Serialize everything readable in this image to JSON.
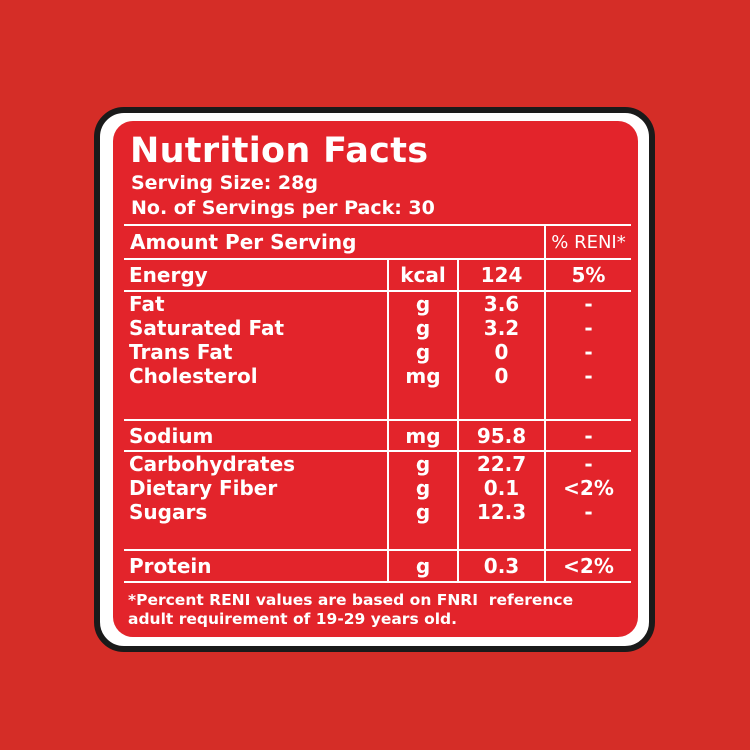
{
  "label": {
    "title": "Nutrition Facts",
    "serving_size": "Serving Size: 28g",
    "servings_per_pack": "No. of Servings per Pack: 30",
    "header_amount": "Amount Per Serving",
    "header_reni": "% RENI*",
    "energy": {
      "name": "Energy",
      "unit": "kcal",
      "value": "124",
      "reni": "5%"
    },
    "fat_group": [
      {
        "name": "Fat",
        "unit": "g",
        "value": "3.6",
        "reni": "-"
      },
      {
        "name": "Saturated Fat",
        "unit": "g",
        "value": "3.2",
        "reni": "-"
      },
      {
        "name": "Trans Fat",
        "unit": "g",
        "value": "0",
        "reni": "-"
      },
      {
        "name": "Cholesterol",
        "unit": "mg",
        "value": "0",
        "reni": "-"
      }
    ],
    "sodium": {
      "name": "Sodium",
      "unit": "mg",
      "value": "95.8",
      "reni": "-"
    },
    "carb_group": [
      {
        "name": "Carbohydrates",
        "unit": "g",
        "value": "22.7",
        "reni": "-"
      },
      {
        "name": "Dietary Fiber",
        "unit": "g",
        "value": "0.1",
        "reni": "<2%"
      },
      {
        "name": "Sugars",
        "unit": "g",
        "value": "12.3",
        "reni": "-"
      }
    ],
    "protein": {
      "name": "Protein",
      "unit": "g",
      "value": "0.3",
      "reni": "<2%"
    },
    "footnote_line1": "*Percent RENI values are based on FNRI  reference",
    "footnote_line2": "adult requirement of 19-29 years old."
  },
  "colors": {
    "background": "#d52d27",
    "panel": "#e3242b",
    "frame": "#1a1a1a",
    "text": "#ffffff"
  }
}
